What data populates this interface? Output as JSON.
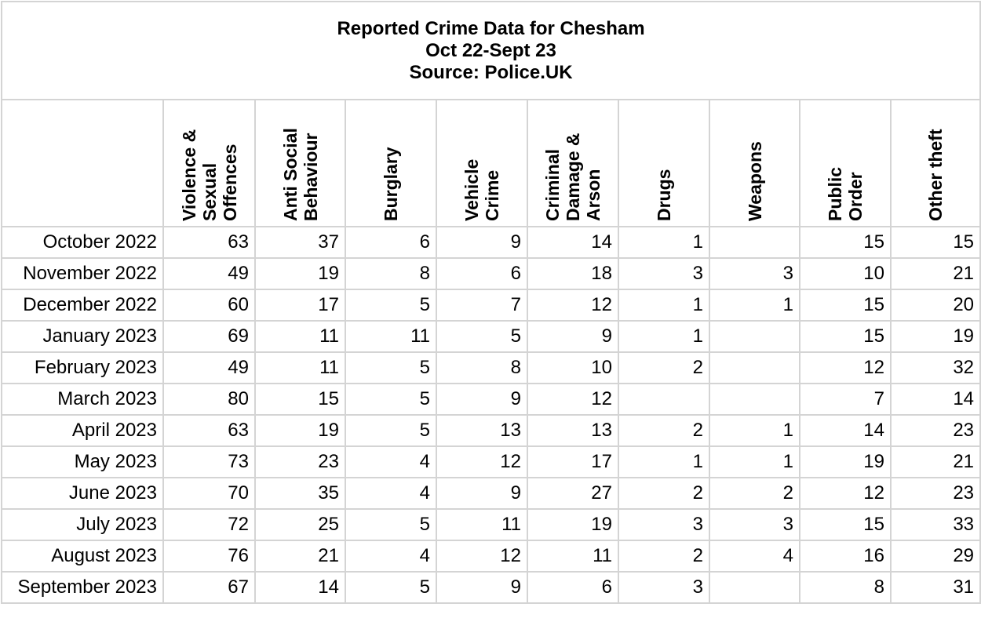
{
  "chart_data": {
    "type": "table",
    "title_lines": [
      "Reported Crime Data for Chesham",
      "Oct 22-Sept 23",
      "Source: Police.UK"
    ],
    "columns": [
      "Violence &\nSexual\nOffences",
      "Anti Social\nBehaviour",
      "Burglary",
      "Vehicle\nCrime",
      "Criminal\nDamage &\nArson",
      "Drugs",
      "Weapons",
      "Public\nOrder",
      "Other theft"
    ],
    "rows": [
      {
        "month": "October 2022",
        "values": [
          "63",
          "37",
          "6",
          "9",
          "14",
          "1",
          "",
          "15",
          "15"
        ]
      },
      {
        "month": "November 2022",
        "values": [
          "49",
          "19",
          "8",
          "6",
          "18",
          "3",
          "3",
          "10",
          "21"
        ]
      },
      {
        "month": "December 2022",
        "values": [
          "60",
          "17",
          "5",
          "7",
          "12",
          "1",
          "1",
          "15",
          "20"
        ]
      },
      {
        "month": "January 2023",
        "values": [
          "69",
          "11",
          "11",
          "5",
          "9",
          "1",
          "",
          "15",
          "19"
        ]
      },
      {
        "month": "February 2023",
        "values": [
          "49",
          "11",
          "5",
          "8",
          "10",
          "2",
          "",
          "12",
          "32"
        ]
      },
      {
        "month": "March 2023",
        "values": [
          "80",
          "15",
          "5",
          "9",
          "12",
          "",
          "",
          "7",
          "14"
        ]
      },
      {
        "month": "April 2023",
        "values": [
          "63",
          "19",
          "5",
          "13",
          "13",
          "2",
          "1",
          "14",
          "23"
        ]
      },
      {
        "month": "May 2023",
        "values": [
          "73",
          "23",
          "4",
          "12",
          "17",
          "1",
          "1",
          "19",
          "21"
        ]
      },
      {
        "month": "June 2023",
        "values": [
          "70",
          "35",
          "4",
          "9",
          "27",
          "2",
          "2",
          "12",
          "23"
        ]
      },
      {
        "month": "July 2023",
        "values": [
          "72",
          "25",
          "5",
          "11",
          "19",
          "3",
          "3",
          "15",
          "33"
        ]
      },
      {
        "month": "August 2023",
        "values": [
          "76",
          "21",
          "4",
          "12",
          "11",
          "2",
          "4",
          "16",
          "29"
        ]
      },
      {
        "month": "September 2023",
        "values": [
          "67",
          "14",
          "5",
          "9",
          "6",
          "3",
          "",
          "8",
          "31"
        ]
      }
    ]
  }
}
